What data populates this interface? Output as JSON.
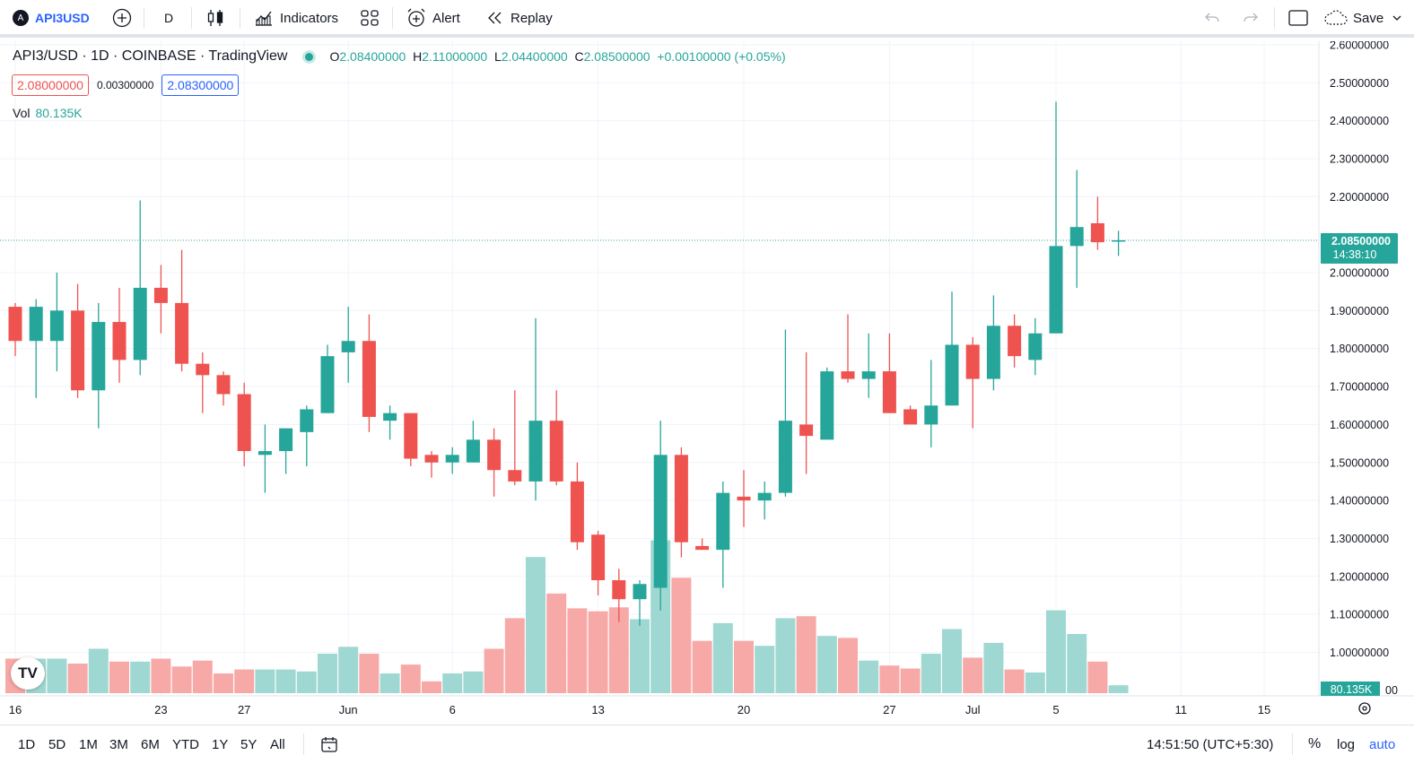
{
  "toolbar": {
    "symbol": "API3USD",
    "interval": "D",
    "indicators_label": "Indicators",
    "alert_label": "Alert",
    "replay_label": "Replay",
    "save_label": "Save",
    "symbol_logo": "A"
  },
  "legend": {
    "title": "API3/USD · 1D · COINBASE · TradingView",
    "o_label": "O",
    "o_value": "2.08400000",
    "h_label": "H",
    "h_value": "2.11000000",
    "l_label": "L",
    "l_value": "2.04400000",
    "c_label": "C",
    "c_value": "2.08500000",
    "change": "+0.00100000 (+0.05%)",
    "bid": "2.08000000",
    "spread": "0.00300000",
    "ask": "2.08300000",
    "vol_label": "Vol",
    "vol_value": "80.135K"
  },
  "price_label": {
    "price": "2.08500000",
    "countdown": "14:38:10"
  },
  "volume_label": "80.135K",
  "logo_text": "TV",
  "bottombar": {
    "ranges": [
      "1D",
      "5D",
      "1M",
      "3M",
      "6M",
      "YTD",
      "1Y",
      "5Y",
      "All"
    ],
    "clock": "14:51:50 (UTC+5:30)",
    "percent": "%",
    "log": "log",
    "auto": "auto"
  },
  "colors": {
    "up": "#26a69a",
    "down": "#ef5350",
    "up_vol": "#9fd8d2",
    "down_vol": "#f7a9a7",
    "accent": "#2962ff"
  },
  "chart_data": {
    "type": "candlestick",
    "title": "API3/USD · 1D · COINBASE · TradingView",
    "y_ticks": [
      "2.60000000",
      "2.50000000",
      "2.40000000",
      "2.30000000",
      "2.20000000",
      "2.00000000",
      "1.90000000",
      "1.80000000",
      "1.70000000",
      "1.60000000",
      "1.50000000",
      "1.40000000",
      "1.30000000",
      "1.20000000",
      "1.10000000",
      "1.00000000"
    ],
    "y_tick_values": [
      2.6,
      2.5,
      2.4,
      2.3,
      2.2,
      2.0,
      1.9,
      1.8,
      1.7,
      1.6,
      1.5,
      1.4,
      1.3,
      1.2,
      1.1,
      1.0
    ],
    "ylim": [
      0.9,
      2.63
    ],
    "x_ticks": [
      {
        "label": "16",
        "index": 0
      },
      {
        "label": "23",
        "index": 7
      },
      {
        "label": "27",
        "index": 11
      },
      {
        "label": "Jun",
        "index": 16
      },
      {
        "label": "6",
        "index": 21
      },
      {
        "label": "13",
        "index": 28
      },
      {
        "label": "20",
        "index": 35
      },
      {
        "label": "27",
        "index": 42
      },
      {
        "label": "Jul",
        "index": 46
      },
      {
        "label": "5",
        "index": 50
      },
      {
        "label": "11",
        "index": 56
      },
      {
        "label": "15",
        "index": 60
      }
    ],
    "current_price": 2.085,
    "candles": [
      {
        "o": 1.91,
        "h": 1.92,
        "l": 1.78,
        "c": 1.82,
        "v": 35
      },
      {
        "o": 1.82,
        "h": 1.93,
        "l": 1.67,
        "c": 1.91,
        "v": 35
      },
      {
        "o": 1.82,
        "h": 2.0,
        "l": 1.74,
        "c": 1.9,
        "v": 35
      },
      {
        "o": 1.9,
        "h": 1.97,
        "l": 1.67,
        "c": 1.69,
        "v": 30
      },
      {
        "o": 1.69,
        "h": 1.92,
        "l": 1.59,
        "c": 1.87,
        "v": 45
      },
      {
        "o": 1.87,
        "h": 1.96,
        "l": 1.71,
        "c": 1.77,
        "v": 32
      },
      {
        "o": 1.77,
        "h": 2.19,
        "l": 1.73,
        "c": 1.96,
        "v": 32
      },
      {
        "o": 1.96,
        "h": 2.02,
        "l": 1.84,
        "c": 1.92,
        "v": 35
      },
      {
        "o": 1.92,
        "h": 2.06,
        "l": 1.74,
        "c": 1.76,
        "v": 27
      },
      {
        "o": 1.76,
        "h": 1.79,
        "l": 1.63,
        "c": 1.73,
        "v": 33
      },
      {
        "o": 1.73,
        "h": 1.74,
        "l": 1.65,
        "c": 1.68,
        "v": 20
      },
      {
        "o": 1.68,
        "h": 1.71,
        "l": 1.49,
        "c": 1.53,
        "v": 24
      },
      {
        "o": 1.52,
        "h": 1.6,
        "l": 1.42,
        "c": 1.53,
        "v": 24
      },
      {
        "o": 1.53,
        "h": 1.59,
        "l": 1.47,
        "c": 1.59,
        "v": 24
      },
      {
        "o": 1.58,
        "h": 1.65,
        "l": 1.49,
        "c": 1.64,
        "v": 22
      },
      {
        "o": 1.63,
        "h": 1.81,
        "l": 1.63,
        "c": 1.78,
        "v": 40
      },
      {
        "o": 1.79,
        "h": 1.91,
        "l": 1.71,
        "c": 1.82,
        "v": 47
      },
      {
        "o": 1.82,
        "h": 1.89,
        "l": 1.58,
        "c": 1.62,
        "v": 40
      },
      {
        "o": 1.61,
        "h": 1.65,
        "l": 1.56,
        "c": 1.63,
        "v": 20
      },
      {
        "o": 1.63,
        "h": 1.63,
        "l": 1.49,
        "c": 1.51,
        "v": 29
      },
      {
        "o": 1.52,
        "h": 1.53,
        "l": 1.46,
        "c": 1.5,
        "v": 12
      },
      {
        "o": 1.5,
        "h": 1.54,
        "l": 1.47,
        "c": 1.52,
        "v": 20
      },
      {
        "o": 1.5,
        "h": 1.61,
        "l": 1.5,
        "c": 1.56,
        "v": 22
      },
      {
        "o": 1.56,
        "h": 1.59,
        "l": 1.41,
        "c": 1.48,
        "v": 45
      },
      {
        "o": 1.48,
        "h": 1.69,
        "l": 1.44,
        "c": 1.45,
        "v": 76
      },
      {
        "o": 1.45,
        "h": 1.88,
        "l": 1.4,
        "c": 1.61,
        "v": 138
      },
      {
        "o": 1.61,
        "h": 1.69,
        "l": 1.44,
        "c": 1.45,
        "v": 101
      },
      {
        "o": 1.45,
        "h": 1.5,
        "l": 1.27,
        "c": 1.29,
        "v": 86
      },
      {
        "o": 1.31,
        "h": 1.32,
        "l": 1.15,
        "c": 1.19,
        "v": 83
      },
      {
        "o": 1.19,
        "h": 1.22,
        "l": 1.08,
        "c": 1.14,
        "v": 87
      },
      {
        "o": 1.14,
        "h": 1.19,
        "l": 1.07,
        "c": 1.18,
        "v": 75
      },
      {
        "o": 1.17,
        "h": 1.61,
        "l": 1.11,
        "c": 1.52,
        "v": 155
      },
      {
        "o": 1.52,
        "h": 1.54,
        "l": 1.25,
        "c": 1.29,
        "v": 117
      },
      {
        "o": 1.28,
        "h": 1.3,
        "l": 1.27,
        "c": 1.27,
        "v": 53
      },
      {
        "o": 1.27,
        "h": 1.45,
        "l": 1.17,
        "c": 1.42,
        "v": 71
      },
      {
        "o": 1.41,
        "h": 1.48,
        "l": 1.33,
        "c": 1.4,
        "v": 53
      },
      {
        "o": 1.4,
        "h": 1.45,
        "l": 1.35,
        "c": 1.42,
        "v": 48
      },
      {
        "o": 1.42,
        "h": 1.85,
        "l": 1.41,
        "c": 1.61,
        "v": 76
      },
      {
        "o": 1.6,
        "h": 1.79,
        "l": 1.47,
        "c": 1.57,
        "v": 78
      },
      {
        "o": 1.56,
        "h": 1.75,
        "l": 1.56,
        "c": 1.74,
        "v": 58
      },
      {
        "o": 1.74,
        "h": 1.89,
        "l": 1.71,
        "c": 1.72,
        "v": 56
      },
      {
        "o": 1.72,
        "h": 1.84,
        "l": 1.67,
        "c": 1.74,
        "v": 33
      },
      {
        "o": 1.74,
        "h": 1.84,
        "l": 1.63,
        "c": 1.63,
        "v": 28
      },
      {
        "o": 1.64,
        "h": 1.65,
        "l": 1.6,
        "c": 1.6,
        "v": 25
      },
      {
        "o": 1.6,
        "h": 1.77,
        "l": 1.54,
        "c": 1.65,
        "v": 40
      },
      {
        "o": 1.65,
        "h": 1.95,
        "l": 1.65,
        "c": 1.81,
        "v": 65
      },
      {
        "o": 1.81,
        "h": 1.83,
        "l": 1.59,
        "c": 1.72,
        "v": 36
      },
      {
        "o": 1.72,
        "h": 1.94,
        "l": 1.69,
        "c": 1.86,
        "v": 51
      },
      {
        "o": 1.86,
        "h": 1.89,
        "l": 1.75,
        "c": 1.78,
        "v": 24
      },
      {
        "o": 1.77,
        "h": 1.88,
        "l": 1.73,
        "c": 1.84,
        "v": 21
      },
      {
        "o": 1.84,
        "h": 2.45,
        "l": 1.84,
        "c": 2.07,
        "v": 84
      },
      {
        "o": 2.07,
        "h": 2.27,
        "l": 1.96,
        "c": 2.12,
        "v": 60
      },
      {
        "o": 2.13,
        "h": 2.2,
        "l": 2.06,
        "c": 2.08,
        "v": 32
      },
      {
        "o": 2.084,
        "h": 2.11,
        "l": 2.044,
        "c": 2.085,
        "v": 8
      }
    ]
  }
}
